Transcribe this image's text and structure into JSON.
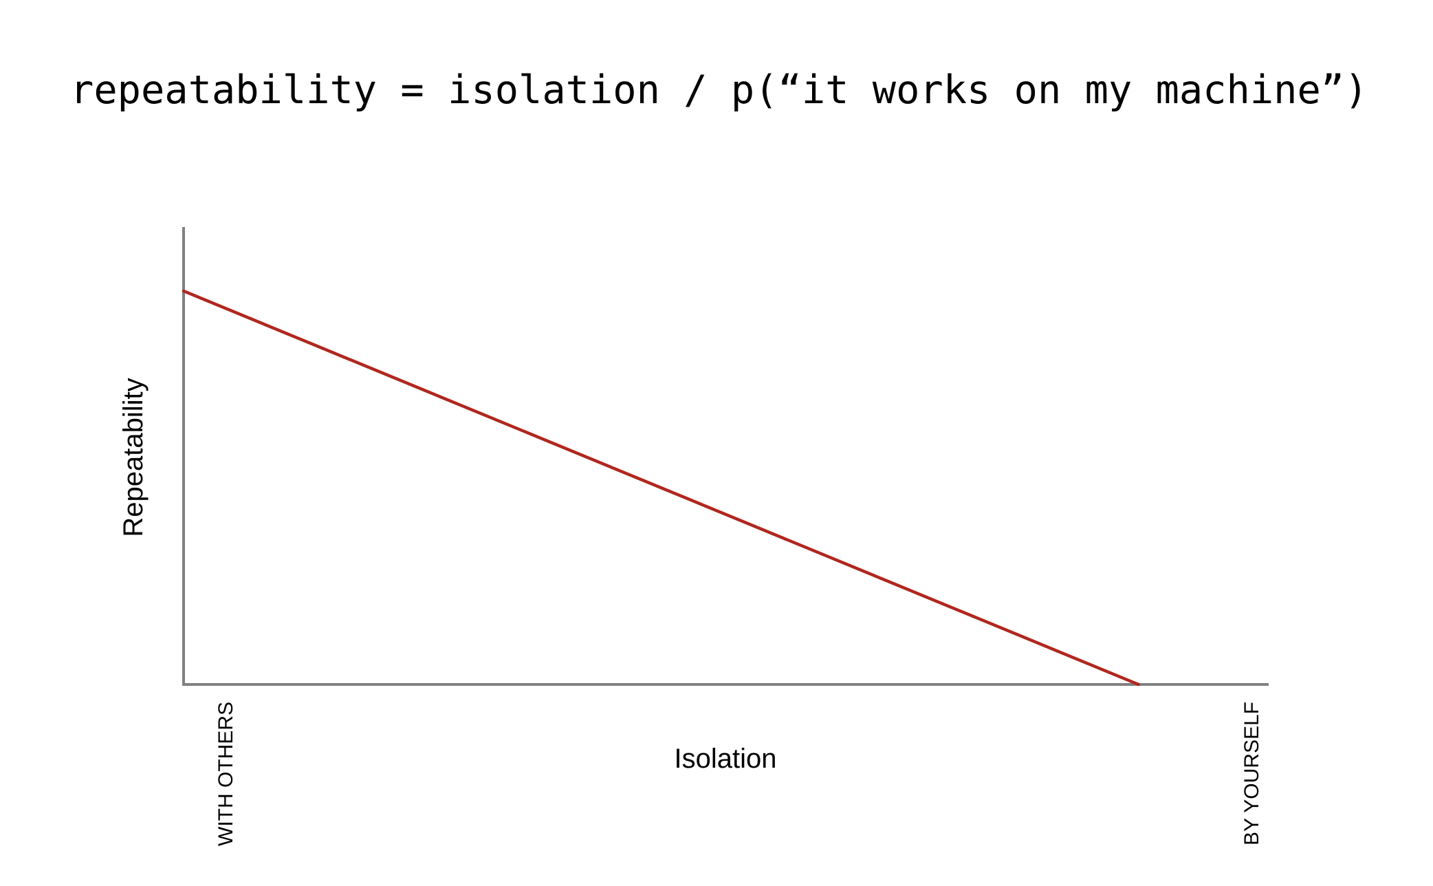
{
  "chart_data": {
    "type": "line",
    "title": "repeatability = isolation / p(“it works on my machine”)",
    "xlabel": "Isolation",
    "ylabel": "Repeatability",
    "x_tick_labels": [
      "WITH OTHERS",
      "BY YOURSELF"
    ],
    "xlim": [
      0,
      1
    ],
    "ylim": [
      0,
      1
    ],
    "grid": false,
    "series": [
      {
        "color": "#b0271f",
        "x": [
          0,
          0.88
        ],
        "y": [
          0.86,
          0
        ]
      }
    ],
    "axis_color": "#808080"
  }
}
